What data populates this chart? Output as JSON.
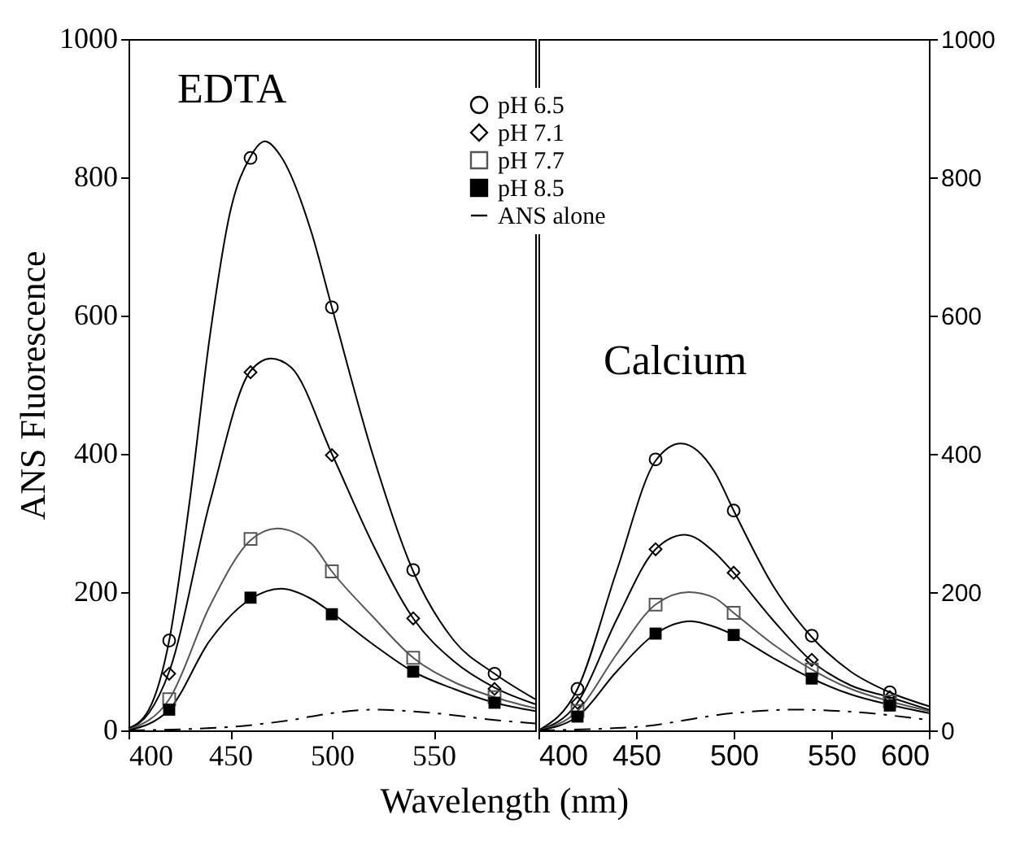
{
  "chart_data": [
    {
      "type": "line",
      "title": "EDTA",
      "xlabel": "Wavelength (nm)",
      "ylabel": "ANS Fluorescence",
      "xlim": [
        400,
        600
      ],
      "xticks": [
        400,
        450,
        500,
        550
      ],
      "ylim": [
        0,
        1000
      ],
      "yticks": [
        0,
        200,
        400,
        600,
        800,
        1000
      ],
      "grid": false,
      "legend": "top right",
      "series": [
        {
          "name": "pH 6.5",
          "color": "#000000",
          "x": [
            400,
            410,
            420,
            430,
            440,
            450,
            460,
            467,
            475,
            490,
            500,
            520,
            540,
            560,
            580,
            600
          ],
          "values": [
            3,
            30,
            130,
            330,
            570,
            750,
            830,
            852,
            830,
            720,
            612,
            400,
            230,
            130,
            82,
            45
          ]
        },
        {
          "name": "pH 7.1",
          "color": "#000000",
          "x": [
            400,
            410,
            420,
            440,
            460,
            470,
            480,
            500,
            520,
            540,
            560,
            580,
            600
          ],
          "values": [
            2,
            25,
            85,
            330,
            520,
            538,
            525,
            400,
            270,
            162,
            100,
            62,
            38
          ]
        },
        {
          "name": "pH 7.7",
          "color": "#555555",
          "x": [
            400,
            420,
            440,
            460,
            473,
            490,
            500,
            520,
            540,
            560,
            580,
            600
          ],
          "values": [
            1,
            45,
            180,
            275,
            292,
            270,
            230,
            165,
            105,
            70,
            48,
            32
          ]
        },
        {
          "name": "pH 8.5",
          "color": "#000000",
          "x": [
            400,
            420,
            440,
            460,
            475,
            490,
            500,
            520,
            540,
            560,
            580,
            600
          ],
          "values": [
            0,
            30,
            130,
            190,
            205,
            190,
            170,
            125,
            85,
            60,
            40,
            28
          ]
        },
        {
          "name": "ANS alone",
          "color": "#000000",
          "line_style": "dashdot",
          "x": [
            400,
            450,
            480,
            500,
            520,
            550,
            580,
            600
          ],
          "values": [
            0,
            5,
            15,
            25,
            30,
            25,
            15,
            10
          ]
        },
        {
          "type": "scatter",
          "color": "#000000",
          "marker": "circle",
          "x": [
            420,
            460,
            500,
            540,
            580
          ],
          "values": [
            130,
            828,
            612,
            232,
            82
          ]
        },
        {
          "type": "scatter",
          "color": "#000000",
          "marker": "diamond",
          "x": [
            420,
            460,
            500,
            540,
            580
          ],
          "values": [
            82,
            518,
            398,
            162,
            60
          ]
        },
        {
          "type": "scatter",
          "color": "#555555",
          "marker": "square",
          "x": [
            420,
            460,
            500,
            540,
            580
          ],
          "values": [
            45,
            277,
            230,
            105,
            48
          ]
        },
        {
          "type": "scatter",
          "color": "#000000",
          "marker": "square",
          "x": [
            420,
            460,
            500,
            540,
            580
          ],
          "values": [
            30,
            192,
            168,
            85,
            40
          ]
        }
      ]
    },
    {
      "type": "line",
      "title": "Calcium",
      "xlim": [
        400,
        600
      ],
      "xticks": [
        400,
        450,
        500,
        550,
        600
      ],
      "ylim": [
        0,
        1000
      ],
      "yticks": [
        0,
        200,
        400,
        600,
        800,
        1000
      ],
      "grid": false,
      "series": [
        {
          "color": "#000000",
          "x": [
            400,
            420,
            440,
            460,
            473,
            490,
            500,
            520,
            540,
            560,
            580,
            600
          ],
          "values": [
            0,
            60,
            230,
            390,
            415,
            375,
            318,
            210,
            135,
            85,
            55,
            35
          ]
        },
        {
          "color": "#000000",
          "x": [
            400,
            420,
            440,
            460,
            475,
            490,
            500,
            520,
            540,
            560,
            580,
            600
          ],
          "values": [
            0,
            40,
            160,
            262,
            283,
            258,
            228,
            160,
            100,
            65,
            48,
            30
          ]
        },
        {
          "color": "#555555",
          "x": [
            400,
            420,
            440,
            460,
            477,
            490,
            500,
            520,
            540,
            560,
            580,
            600
          ],
          "values": [
            0,
            28,
            110,
            182,
            200,
            192,
            170,
            125,
            88,
            60,
            42,
            28
          ]
        },
        {
          "color": "#000000",
          "x": [
            400,
            420,
            440,
            460,
            478,
            490,
            500,
            520,
            540,
            560,
            580,
            600
          ],
          "values": [
            0,
            20,
            85,
            140,
            158,
            150,
            138,
            105,
            75,
            52,
            37,
            25
          ]
        },
        {
          "color": "#000000",
          "line_style": "dashdot",
          "x": [
            400,
            450,
            500,
            530,
            560,
            600
          ],
          "values": [
            0,
            5,
            25,
            30,
            27,
            15
          ]
        },
        {
          "type": "scatter",
          "color": "#000000",
          "marker": "circle",
          "x": [
            420,
            460,
            500,
            540,
            580
          ],
          "values": [
            60,
            392,
            318,
            137,
            55
          ]
        },
        {
          "type": "scatter",
          "color": "#000000",
          "marker": "diamond",
          "x": [
            420,
            460,
            500,
            540,
            580
          ],
          "values": [
            40,
            262,
            228,
            102,
            48
          ]
        },
        {
          "type": "scatter",
          "color": "#555555",
          "marker": "square",
          "x": [
            420,
            460,
            500,
            540,
            580
          ],
          "values": [
            28,
            182,
            170,
            88,
            42
          ]
        },
        {
          "type": "scatter",
          "color": "#000000",
          "marker": "square",
          "x": [
            420,
            460,
            500,
            540,
            580
          ],
          "values": [
            20,
            140,
            138,
            75,
            36
          ]
        }
      ]
    }
  ]
}
